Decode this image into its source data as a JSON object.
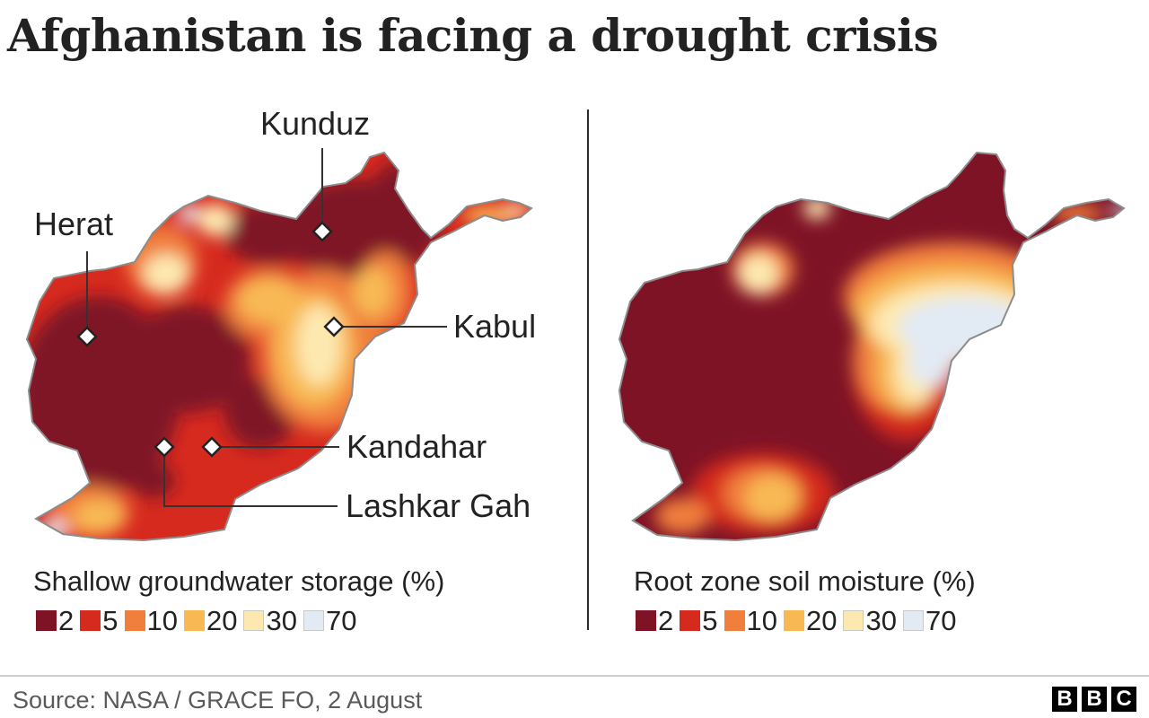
{
  "title": "Afghanistan is facing a drought crisis",
  "left_map": {
    "legend_title": "Shallow groundwater storage (%)",
    "cities": [
      {
        "name": "Kunduz"
      },
      {
        "name": "Herat"
      },
      {
        "name": "Kabul"
      },
      {
        "name": "Kandahar"
      },
      {
        "name": "Lashkar Gah"
      }
    ]
  },
  "right_map": {
    "legend_title": "Root zone soil moisture (%)"
  },
  "legend_items": [
    {
      "label": "2",
      "color": "#7f1326"
    },
    {
      "label": "5",
      "color": "#d62a1f"
    },
    {
      "label": "10",
      "color": "#f07e3d"
    },
    {
      "label": "20",
      "color": "#f8b954"
    },
    {
      "label": "30",
      "color": "#fde9b0"
    },
    {
      "label": "70",
      "color": "#e2eaf4"
    }
  ],
  "source": "Source: NASA / GRACE FO, 2 August",
  "logo": [
    "B",
    "B",
    "C"
  ]
}
